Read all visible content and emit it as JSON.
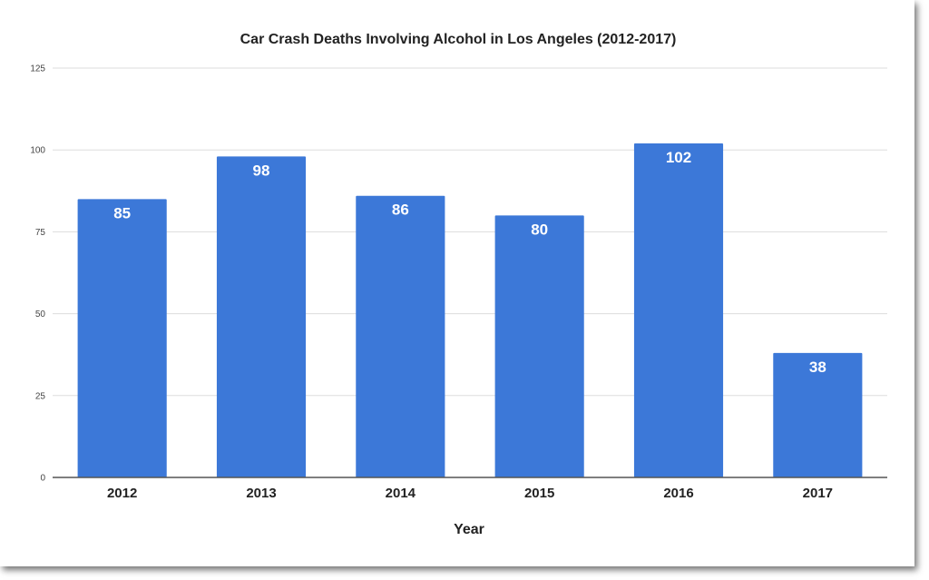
{
  "chart_data": {
    "type": "bar",
    "title": "Car Crash Deaths Involving Alcohol in Los Angeles (2012-2017)",
    "xlabel": "Year",
    "ylabel": "",
    "categories": [
      "2012",
      "2013",
      "2014",
      "2015",
      "2016",
      "2017"
    ],
    "values": [
      85,
      98,
      86,
      80,
      102,
      38
    ],
    "ylim": [
      0,
      125
    ],
    "yticks": [
      0,
      25,
      50,
      75,
      100,
      125
    ],
    "grid": true,
    "data_labels": true,
    "legend": "none",
    "colors": {
      "bar": "#3c78d8",
      "grid": "#dddddd",
      "axis": "#555555"
    }
  }
}
